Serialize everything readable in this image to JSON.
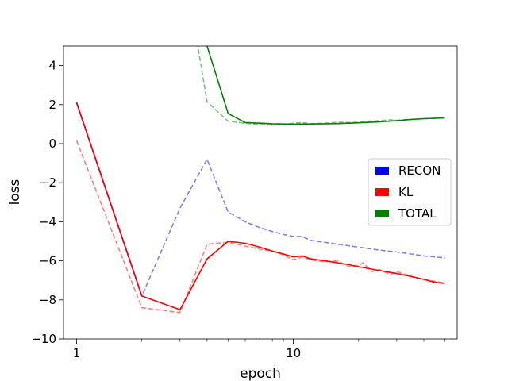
{
  "chart_data": {
    "type": "line",
    "xlabel": "epoch",
    "ylabel": "loss",
    "x_scale": "log",
    "xlim": [
      0.87,
      57
    ],
    "ylim": [
      -10,
      5
    ],
    "x_ticks": [
      {
        "value": 1,
        "label": "1"
      },
      {
        "value": 10,
        "label": "10"
      }
    ],
    "y_ticks": [
      {
        "value": 4,
        "label": "4"
      },
      {
        "value": 2,
        "label": "2"
      },
      {
        "value": 0,
        "label": "0"
      },
      {
        "value": -2,
        "label": "−2"
      },
      {
        "value": -4,
        "label": "−4"
      },
      {
        "value": -6,
        "label": "−6"
      },
      {
        "value": -8,
        "label": "−8"
      },
      {
        "value": -10,
        "label": "−10"
      }
    ],
    "grid": false,
    "legend_position": "center-right",
    "legend": [
      {
        "label": "RECON",
        "color": "#0000ff"
      },
      {
        "label": "KL",
        "color": "#ff0000"
      },
      {
        "label": "TOTAL",
        "color": "#008000"
      }
    ],
    "series": [
      {
        "name": "RECON",
        "color": "#0000ff",
        "style": "dashed",
        "x": [
          1,
          2,
          3,
          4,
          5,
          6,
          7,
          8,
          9,
          10,
          11,
          12,
          15,
          20,
          25,
          30,
          35,
          40,
          45,
          50
        ],
        "y": [
          2.1,
          -7.8,
          -3.3,
          -0.8,
          -3.5,
          -4.0,
          -4.3,
          -4.5,
          -4.65,
          -4.75,
          -4.75,
          -4.95,
          -5.1,
          -5.3,
          -5.45,
          -5.55,
          -5.65,
          -5.75,
          -5.8,
          -5.85
        ]
      },
      {
        "name": "RECON",
        "color": "#0000ff",
        "style": "solid",
        "x": [
          1,
          2
        ],
        "y": [
          2.1,
          -7.8
        ]
      },
      {
        "name": "KL",
        "color": "#ff0000",
        "style": "dashed",
        "x": [
          1,
          2,
          3,
          4,
          5,
          6,
          7,
          8,
          9,
          10,
          11,
          12,
          14,
          16,
          18,
          20,
          21,
          23,
          25,
          28,
          30,
          35,
          40,
          45,
          50
        ],
        "y": [
          0.15,
          -8.4,
          -8.65,
          -5.15,
          -5.05,
          -5.25,
          -5.4,
          -5.5,
          -5.7,
          -5.95,
          -5.8,
          -5.95,
          -6.05,
          -6.0,
          -6.3,
          -6.25,
          -6.1,
          -6.55,
          -6.45,
          -6.7,
          -6.55,
          -6.8,
          -6.95,
          -7.05,
          -7.15
        ]
      },
      {
        "name": "KL",
        "color": "#ff0000",
        "style": "solid",
        "x": [
          1,
          2,
          3,
          4,
          5,
          6,
          7,
          8,
          9,
          10,
          11,
          12,
          14,
          16,
          18,
          20,
          25,
          30,
          35,
          40,
          45,
          50
        ],
        "y": [
          2.1,
          -7.8,
          -8.5,
          -5.9,
          -5.0,
          -5.1,
          -5.3,
          -5.5,
          -5.65,
          -5.8,
          -5.75,
          -5.9,
          -6.0,
          -6.1,
          -6.2,
          -6.3,
          -6.5,
          -6.65,
          -6.8,
          -6.95,
          -7.1,
          -7.15
        ]
      },
      {
        "name": "TOTAL",
        "color": "#008000",
        "style": "dashed",
        "x": [
          3.6,
          4,
          5,
          6,
          7,
          8,
          9,
          10,
          11,
          12,
          14,
          16,
          18,
          20,
          22,
          25,
          28,
          30,
          35,
          40,
          45,
          50
        ],
        "y": [
          5.2,
          2.15,
          1.15,
          1.05,
          0.98,
          0.95,
          0.98,
          1.05,
          1.08,
          1.02,
          1.05,
          1.1,
          1.08,
          1.1,
          1.15,
          1.18,
          1.22,
          1.2,
          1.25,
          1.28,
          1.3,
          1.32
        ]
      },
      {
        "name": "TOTAL",
        "color": "#008000",
        "style": "solid",
        "x": [
          3.95,
          5,
          6,
          7,
          8,
          9,
          10,
          12,
          14,
          16,
          18,
          20,
          25,
          30,
          35,
          40,
          45,
          50
        ],
        "y": [
          5.2,
          1.55,
          1.08,
          1.05,
          1.02,
          1.01,
          1.0,
          1.01,
          1.02,
          1.03,
          1.05,
          1.07,
          1.12,
          1.18,
          1.24,
          1.28,
          1.3,
          1.32
        ]
      }
    ]
  }
}
